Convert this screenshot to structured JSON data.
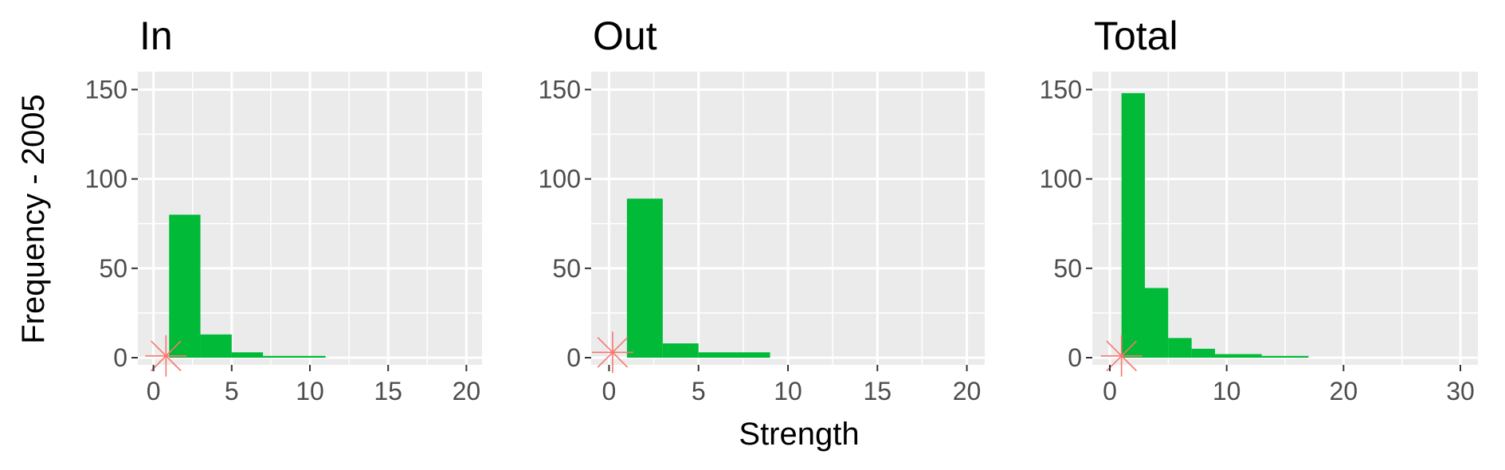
{
  "chart_data": [
    {
      "type": "bar",
      "title": "In",
      "xlabel": "",
      "ylabel": "Frequency - 2005",
      "xlim": [
        -1,
        21
      ],
      "ylim": [
        -4,
        160
      ],
      "xticks": [
        0,
        5,
        10,
        15,
        20
      ],
      "yticks": [
        0,
        50,
        100,
        150
      ],
      "bins": [
        {
          "x0": 1,
          "x1": 3,
          "count": 80
        },
        {
          "x0": 3,
          "x1": 5,
          "count": 13
        },
        {
          "x0": 5,
          "x1": 7,
          "count": 3
        },
        {
          "x0": 7,
          "x1": 11,
          "count": 1
        }
      ],
      "marker": {
        "x": 0.8,
        "y": 1
      }
    },
    {
      "type": "bar",
      "title": "Out",
      "xlabel": "Strength",
      "ylabel": "",
      "xlim": [
        -1,
        21
      ],
      "ylim": [
        -4,
        160
      ],
      "xticks": [
        0,
        5,
        10,
        15,
        20
      ],
      "yticks": [
        0,
        50,
        100,
        150
      ],
      "bins": [
        {
          "x0": 1,
          "x1": 3,
          "count": 89
        },
        {
          "x0": 3,
          "x1": 5,
          "count": 8
        },
        {
          "x0": 5,
          "x1": 9,
          "count": 3
        }
      ],
      "marker": {
        "x": 0.2,
        "y": 3
      }
    },
    {
      "type": "bar",
      "title": "Total",
      "xlabel": "",
      "ylabel": "",
      "xlim": [
        -1.5,
        31.5
      ],
      "ylim": [
        -4,
        160
      ],
      "xticks": [
        0,
        10,
        20,
        30
      ],
      "yticks": [
        0,
        50,
        100,
        150
      ],
      "bins": [
        {
          "x0": 1,
          "x1": 3,
          "count": 148
        },
        {
          "x0": 3,
          "x1": 5,
          "count": 39
        },
        {
          "x0": 5,
          "x1": 7,
          "count": 11
        },
        {
          "x0": 7,
          "x1": 9,
          "count": 5
        },
        {
          "x0": 9,
          "x1": 13,
          "count": 2
        },
        {
          "x0": 13,
          "x1": 17,
          "count": 1
        }
      ],
      "marker": {
        "x": 1,
        "y": 1
      }
    }
  ],
  "colors": {
    "panel_background": "#ebebeb",
    "gridline": "#ffffff",
    "bar_fill": "#00ba38",
    "marker": "#f8766d",
    "tick_text": "#4d4d4d",
    "tick_mark": "#333333"
  }
}
